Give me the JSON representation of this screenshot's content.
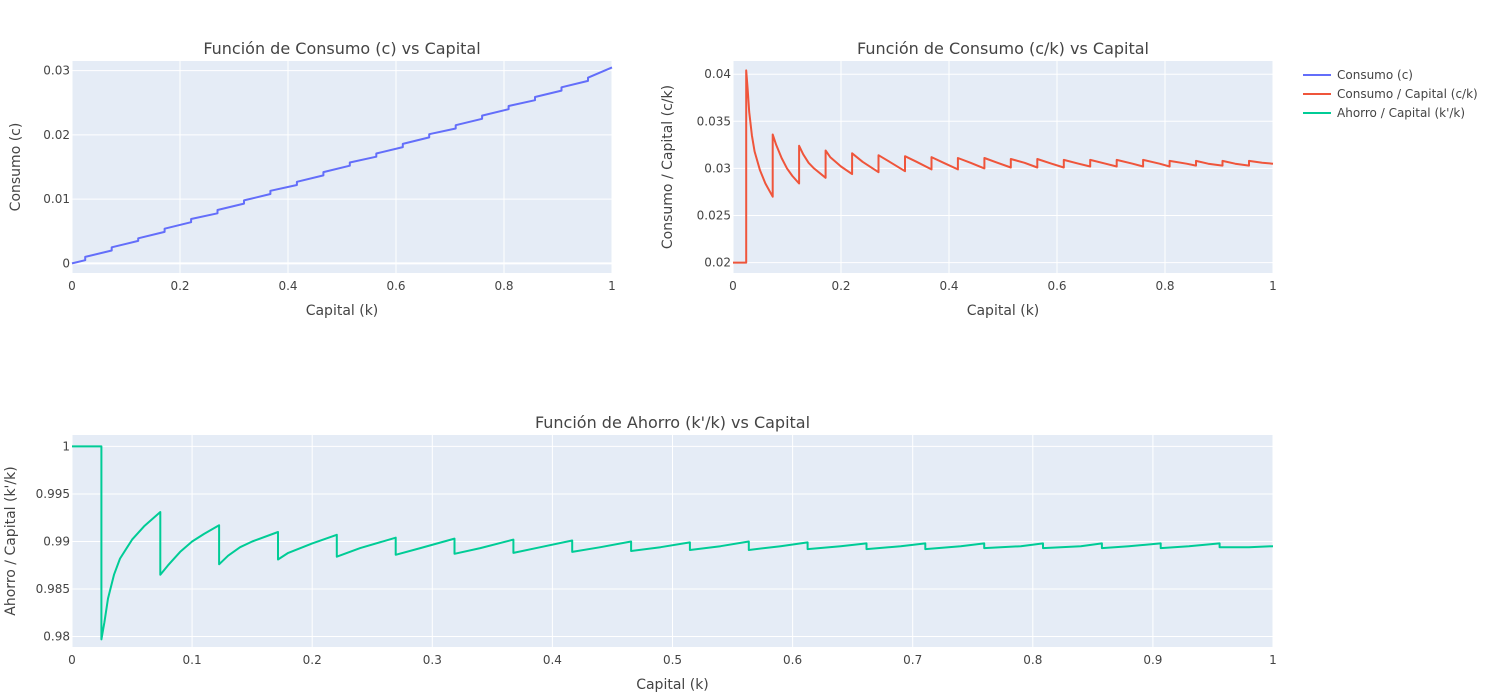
{
  "chart_data": [
    {
      "type": "line",
      "title": "Función de Consumo (c) vs Capital",
      "xlabel": "Capital (k)",
      "ylabel": "Consumo (c)",
      "xlim": [
        0,
        1
      ],
      "ylim": [
        -0.0015,
        0.0315
      ],
      "xticks": [
        0,
        0.2,
        0.4,
        0.6,
        0.8,
        1
      ],
      "xtick_labels": [
        "0",
        "0.2",
        "0.4",
        "0.6",
        "0.8",
        "1"
      ],
      "yticks": [
        0,
        0.01,
        0.02,
        0.03
      ],
      "ytick_labels": [
        "0",
        "0.01",
        "0.02",
        "0.03"
      ],
      "grid": true,
      "series": [
        {
          "name": "Consumo (c)",
          "color": "#636efa",
          "x": [
            0,
            0.0245,
            0.0245,
            0.0735,
            0.0735,
            0.1225,
            0.1225,
            0.1715,
            0.1715,
            0.2205,
            0.2205,
            0.2695,
            0.2695,
            0.3185,
            0.3185,
            0.3675,
            0.3675,
            0.4165,
            0.4165,
            0.4655,
            0.4655,
            0.5145,
            0.5145,
            0.5635,
            0.5635,
            0.6125,
            0.6125,
            0.6615,
            0.6615,
            0.7105,
            0.7105,
            0.7595,
            0.7595,
            0.8085,
            0.8085,
            0.8575,
            0.8575,
            0.9065,
            0.9065,
            0.9555,
            0.9555,
            1
          ],
          "y": [
            0,
            0.0005,
            0.001,
            0.002,
            0.0025,
            0.0035,
            0.0039,
            0.0049,
            0.0054,
            0.0064,
            0.0069,
            0.0078,
            0.0083,
            0.0093,
            0.0098,
            0.0108,
            0.0113,
            0.0122,
            0.0127,
            0.0137,
            0.0142,
            0.0152,
            0.0157,
            0.0166,
            0.0171,
            0.0181,
            0.0186,
            0.0196,
            0.0201,
            0.021,
            0.0215,
            0.0225,
            0.023,
            0.024,
            0.0245,
            0.0254,
            0.0259,
            0.0269,
            0.0274,
            0.0284,
            0.0289,
            0.0305
          ]
        }
      ]
    },
    {
      "type": "line",
      "title": "Función de Consumo (c/k) vs Capital",
      "xlabel": "Capital (k)",
      "ylabel": "Consumo / Capital (c/k)",
      "xlim": [
        0,
        1
      ],
      "ylim": [
        0.0189,
        0.0414
      ],
      "xticks": [
        0,
        0.2,
        0.4,
        0.6,
        0.8,
        1
      ],
      "xtick_labels": [
        "0",
        "0.2",
        "0.4",
        "0.6",
        "0.8",
        "1"
      ],
      "yticks": [
        0.02,
        0.025,
        0.03,
        0.035,
        0.04
      ],
      "ytick_labels": [
        "0.02",
        "0.025",
        "0.03",
        "0.035",
        "0.04"
      ],
      "grid": true,
      "series": [
        {
          "name": "Consumo / Capital (c/k)",
          "color": "#ef553b",
          "x": [
            0,
            0.0245,
            0.0245,
            0.027,
            0.03,
            0.035,
            0.04,
            0.05,
            0.06,
            0.0735,
            0.0735,
            0.08,
            0.09,
            0.1,
            0.11,
            0.1225,
            0.1225,
            0.13,
            0.14,
            0.15,
            0.1715,
            0.1715,
            0.18,
            0.2,
            0.2205,
            0.2205,
            0.24,
            0.2695,
            0.2695,
            0.29,
            0.3185,
            0.3185,
            0.34,
            0.3675,
            0.3675,
            0.39,
            0.4165,
            0.4165,
            0.44,
            0.4655,
            0.4655,
            0.49,
            0.5145,
            0.5145,
            0.54,
            0.5635,
            0.5635,
            0.59,
            0.6125,
            0.6125,
            0.64,
            0.6615,
            0.6615,
            0.69,
            0.7105,
            0.7105,
            0.74,
            0.7595,
            0.7595,
            0.79,
            0.8085,
            0.8085,
            0.84,
            0.8575,
            0.8575,
            0.88,
            0.9065,
            0.9065,
            0.93,
            0.9555,
            0.9555,
            0.98,
            1
          ],
          "y": [
            0.02,
            0.02,
            0.0404,
            0.0385,
            0.036,
            0.0335,
            0.0318,
            0.0298,
            0.0284,
            0.027,
            0.0336,
            0.0325,
            0.0311,
            0.03,
            0.0292,
            0.0284,
            0.0324,
            0.0315,
            0.0306,
            0.03,
            0.029,
            0.0319,
            0.0312,
            0.0302,
            0.0294,
            0.0316,
            0.0307,
            0.0296,
            0.0314,
            0.0307,
            0.0297,
            0.0313,
            0.0307,
            0.0299,
            0.0312,
            0.0306,
            0.0299,
            0.0311,
            0.0306,
            0.03,
            0.0311,
            0.0306,
            0.0301,
            0.031,
            0.0306,
            0.0301,
            0.031,
            0.0305,
            0.0301,
            0.0309,
            0.0305,
            0.0302,
            0.0309,
            0.0305,
            0.0302,
            0.0309,
            0.0305,
            0.0302,
            0.0309,
            0.0305,
            0.0302,
            0.0308,
            0.0305,
            0.0303,
            0.0308,
            0.0305,
            0.0303,
            0.0308,
            0.0305,
            0.0303,
            0.0308,
            0.0306,
            0.0305
          ]
        }
      ]
    },
    {
      "type": "line",
      "title": "Función de Ahorro (k'/k) vs Capital",
      "xlabel": "Capital (k)",
      "ylabel": "Ahorro / Capital (k'/k)",
      "xlim": [
        0,
        1
      ],
      "ylim": [
        0.9789,
        1.0012
      ],
      "xticks": [
        0,
        0.1,
        0.2,
        0.3,
        0.4,
        0.5,
        0.6,
        0.7,
        0.8,
        0.9,
        1
      ],
      "xtick_labels": [
        "0",
        "0.1",
        "0.2",
        "0.3",
        "0.4",
        "0.5",
        "0.6",
        "0.7",
        "0.8",
        "0.9",
        "1"
      ],
      "yticks": [
        0.98,
        0.985,
        0.99,
        0.995,
        1
      ],
      "ytick_labels": [
        "0.98",
        "0.985",
        "0.99",
        "0.995",
        "1"
      ],
      "grid": true,
      "series": [
        {
          "name": "Ahorro / Capital (k'/k)",
          "color": "#00cc96",
          "x": [
            0,
            0.0245,
            0.0245,
            0.027,
            0.03,
            0.035,
            0.04,
            0.05,
            0.06,
            0.0735,
            0.0735,
            0.08,
            0.09,
            0.1,
            0.11,
            0.1225,
            0.1225,
            0.13,
            0.14,
            0.15,
            0.1715,
            0.1715,
            0.18,
            0.2,
            0.2205,
            0.2205,
            0.24,
            0.2695,
            0.2695,
            0.29,
            0.3185,
            0.3185,
            0.34,
            0.3675,
            0.3675,
            0.39,
            0.4165,
            0.4165,
            0.44,
            0.4655,
            0.4655,
            0.49,
            0.5145,
            0.5145,
            0.54,
            0.5635,
            0.5635,
            0.59,
            0.6125,
            0.6125,
            0.64,
            0.6615,
            0.6615,
            0.69,
            0.7105,
            0.7105,
            0.74,
            0.7595,
            0.7595,
            0.79,
            0.8085,
            0.8085,
            0.84,
            0.8575,
            0.8575,
            0.88,
            0.9065,
            0.9065,
            0.93,
            0.9555,
            0.9555,
            0.98,
            1
          ],
          "y": [
            1,
            1,
            0.9797,
            0.9815,
            0.984,
            0.9865,
            0.9882,
            0.9902,
            0.9916,
            0.9931,
            0.9865,
            0.9875,
            0.9889,
            0.99,
            0.9908,
            0.9917,
            0.9876,
            0.9885,
            0.9894,
            0.99,
            0.991,
            0.9881,
            0.9888,
            0.9898,
            0.9907,
            0.9884,
            0.9893,
            0.9904,
            0.9886,
            0.9893,
            0.9903,
            0.9887,
            0.9893,
            0.9902,
            0.9888,
            0.9894,
            0.9901,
            0.9889,
            0.9894,
            0.99,
            0.989,
            0.9894,
            0.9899,
            0.9891,
            0.9895,
            0.99,
            0.9891,
            0.9895,
            0.9899,
            0.9892,
            0.9895,
            0.9898,
            0.9892,
            0.9895,
            0.9898,
            0.9892,
            0.9895,
            0.9898,
            0.9893,
            0.9895,
            0.9898,
            0.9893,
            0.9895,
            0.9898,
            0.9893,
            0.9895,
            0.9898,
            0.9893,
            0.9895,
            0.9898,
            0.9894,
            0.9894,
            0.9895
          ]
        }
      ]
    }
  ],
  "legend": {
    "placement": "top-right",
    "items": [
      {
        "label": "Consumo (c)",
        "color": "#636efa"
      },
      {
        "label": "Consumo / Capital (c/k)",
        "color": "#ef553b"
      },
      {
        "label": "Ahorro / Capital (k'/k)",
        "color": "#00cc96"
      }
    ]
  },
  "style": {
    "plot_background": "#e5ecf6",
    "grid_color": "#ffffff",
    "text_color": "#444444"
  }
}
